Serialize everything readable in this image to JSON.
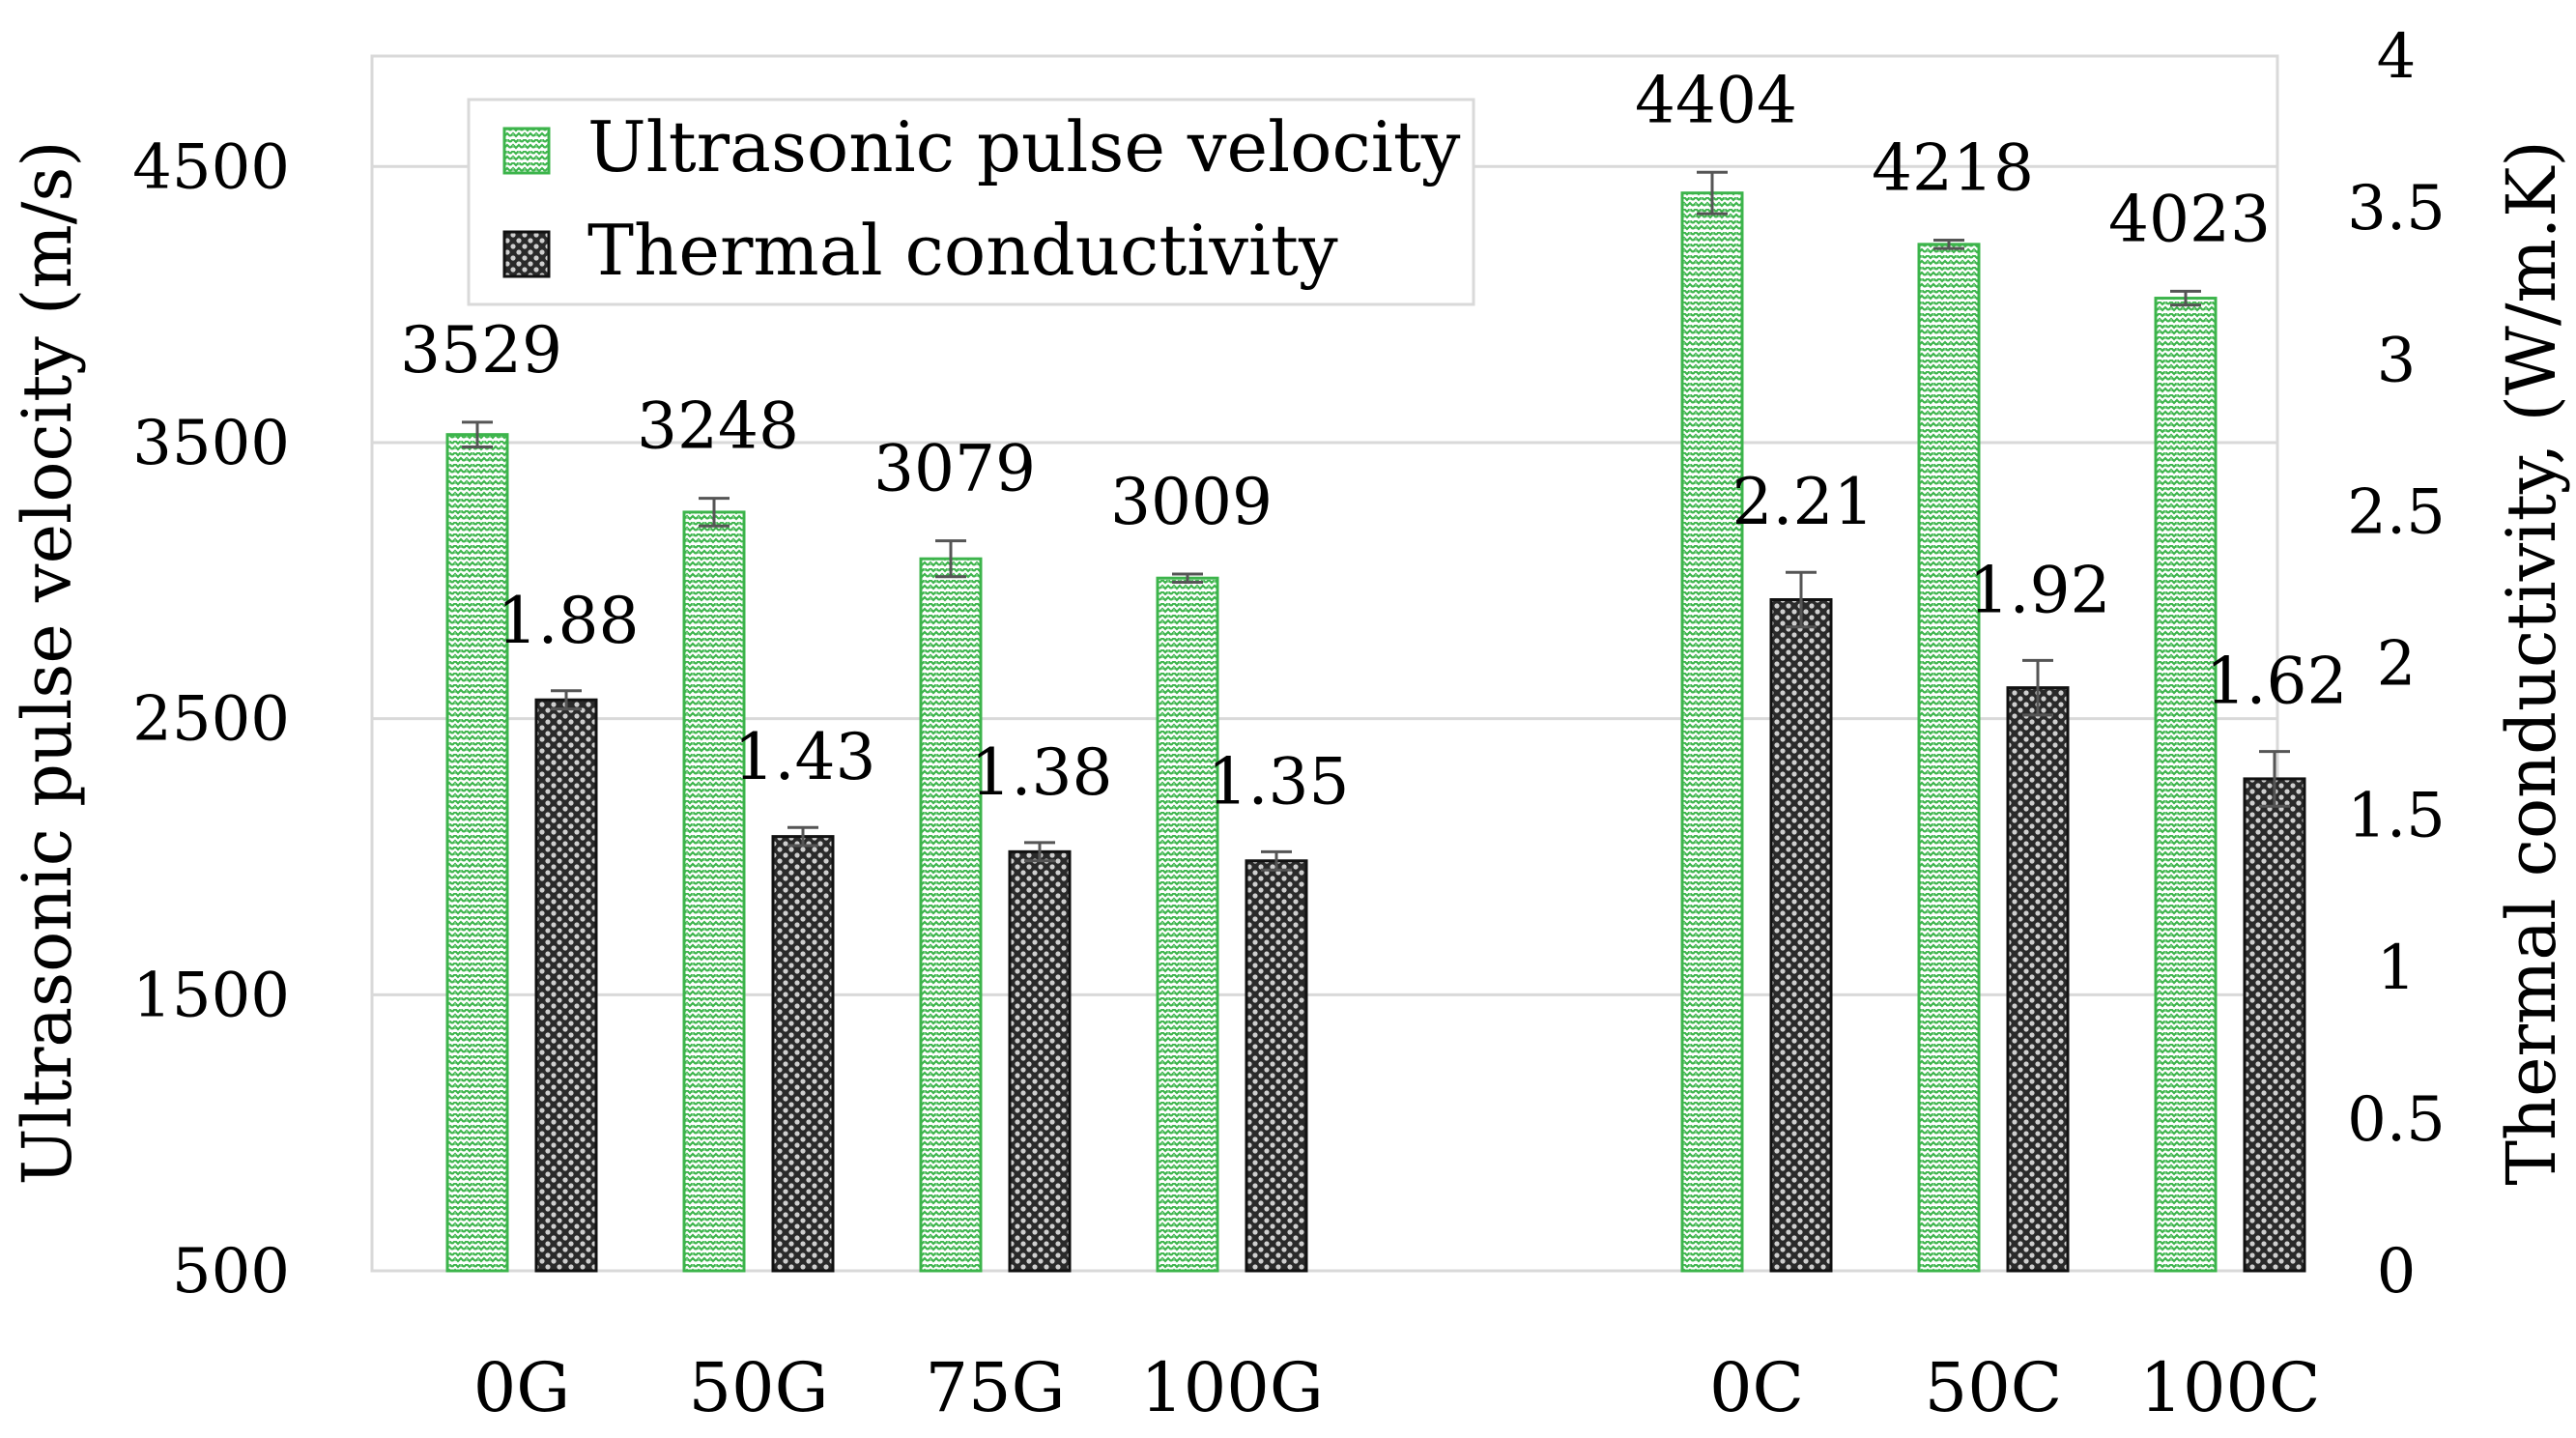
{
  "chart_data": {
    "type": "bar",
    "categories": [
      "0G",
      "50G",
      "75G",
      "100G",
      "0C",
      "50C",
      "100C"
    ],
    "gap_after_index": 3,
    "series": [
      {
        "name": "Ultrasonic pulse velocity",
        "axis": "left",
        "values": [
          3529,
          3248,
          3079,
          3009,
          4404,
          4218,
          4023
        ],
        "error": [
          45,
          50,
          65,
          15,
          75,
          15,
          25
        ],
        "data_labels": [
          "3529",
          "3248",
          "3079",
          "3009",
          "4404",
          "4218",
          "4023"
        ],
        "color": "#3cb44b",
        "pattern": "green-weave"
      },
      {
        "name": "Thermal conductivity",
        "axis": "right",
        "values": [
          1.88,
          1.43,
          1.38,
          1.35,
          2.21,
          1.92,
          1.62
        ],
        "error": [
          0.03,
          0.03,
          0.03,
          0.03,
          0.09,
          0.09,
          0.09
        ],
        "data_labels": [
          "1.88",
          "1.43",
          "1.38",
          "1.35",
          "2.21",
          "1.92",
          "1.62"
        ],
        "color": "#222222",
        "pattern": "dark-dots"
      }
    ],
    "left_axis": {
      "label": "Ultrasonic pulse velocity (m/s)",
      "ylim": [
        500,
        4900
      ],
      "ticks": [
        500,
        1500,
        2500,
        3500,
        4500
      ],
      "tick_labels": [
        "500",
        "1500",
        "2500",
        "3500",
        "4500"
      ]
    },
    "right_axis": {
      "label": "Thermal conductivity, (W/m.K)",
      "ylim": [
        0,
        4
      ],
      "ticks": [
        0,
        0.5,
        1,
        1.5,
        2,
        2.5,
        3,
        3.5,
        4
      ],
      "tick_labels": [
        "0",
        "0.5",
        "1",
        "1.5",
        "2",
        "2.5",
        "3",
        "3.5",
        "4"
      ]
    },
    "grid": true,
    "legend": "top-left"
  }
}
